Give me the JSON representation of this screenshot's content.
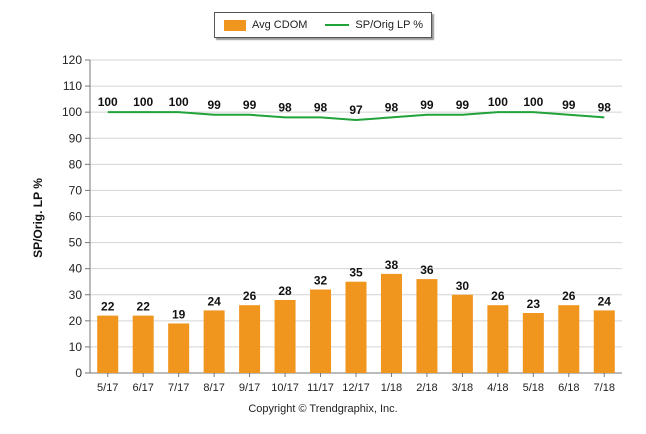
{
  "chart_data": {
    "type": "bar",
    "categories": [
      "5/17",
      "6/17",
      "7/17",
      "8/17",
      "9/17",
      "10/17",
      "11/17",
      "12/17",
      "1/18",
      "2/18",
      "3/18",
      "4/18",
      "5/18",
      "6/18",
      "7/18"
    ],
    "series": [
      {
        "name": "Avg CDOM",
        "kind": "bar",
        "color": "#f0961e",
        "values": [
          22,
          22,
          19,
          24,
          26,
          28,
          32,
          35,
          38,
          36,
          30,
          26,
          23,
          26,
          24
        ]
      },
      {
        "name": "SP/Orig LP %",
        "kind": "line",
        "color": "#21a33a",
        "values": [
          100,
          100,
          100,
          99,
          99,
          98,
          98,
          97,
          98,
          99,
          99,
          100,
          100,
          99,
          98
        ]
      }
    ],
    "ylabel": "SP/Orig. LP %",
    "ylim": [
      0,
      120
    ],
    "yticks": [
      0,
      10,
      20,
      30,
      40,
      50,
      60,
      70,
      80,
      90,
      100,
      110,
      120
    ],
    "grid": true,
    "legend": "top-center",
    "data_labels": true
  },
  "legend": {
    "bar_label": "Avg CDOM",
    "line_label": "SP/Orig LP %"
  },
  "footer": {
    "copyright": "Copyright © Trendgraphix, Inc."
  }
}
